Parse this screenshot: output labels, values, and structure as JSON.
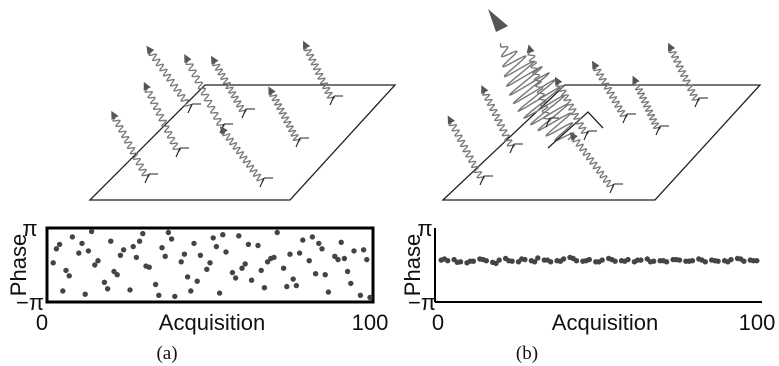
{
  "panels": [
    {
      "caption": "(a)",
      "illustration": {
        "description_icon": "random-phase-photons",
        "wave_color": "#777777",
        "arrow_color": "#555555"
      },
      "chart_data": {
        "type": "scatter",
        "xlabel": "Acquisition",
        "ylabel": "Phase",
        "xlim": [
          0,
          100
        ],
        "ylim": [
          -3.14159,
          3.14159
        ],
        "x_ticks": [
          "0",
          "100"
        ],
        "y_ticks": [
          "π",
          "−π"
        ],
        "marker_color": "#444444",
        "x": [
          1,
          3,
          5,
          7,
          9,
          11,
          13,
          15,
          17,
          19,
          21,
          23,
          25,
          27,
          29,
          31,
          33,
          35,
          37,
          39,
          41,
          43,
          45,
          47,
          49,
          51,
          53,
          55,
          57,
          59,
          61,
          63,
          65,
          67,
          69,
          71,
          73,
          75,
          77,
          79,
          81,
          83,
          85,
          87,
          89,
          91,
          93,
          95,
          97,
          99,
          2,
          6,
          10,
          14,
          18,
          22,
          26,
          30,
          34,
          38,
          42,
          46,
          50,
          54,
          58,
          62,
          66,
          70,
          74,
          78,
          82,
          86,
          90,
          94,
          98,
          4,
          12,
          20,
          28,
          36,
          44,
          52,
          60,
          68,
          76,
          84,
          92,
          100
        ],
        "y": [
          0.2,
          1.9,
          -0.5,
          2.6,
          1.1,
          -2.7,
          3.1,
          0.4,
          -1.6,
          2.2,
          -0.9,
          1.4,
          -2.3,
          0.7,
          2.9,
          -0.2,
          -1.8,
          1.6,
          3.0,
          -2.9,
          0.3,
          -1.1,
          2.0,
          0.9,
          -0.4,
          2.5,
          -2.6,
          1.2,
          -0.7,
          2.7,
          0.1,
          -1.4,
          1.8,
          -2.1,
          0.6,
          3.0,
          -0.3,
          1.0,
          -1.9,
          2.3,
          0.4,
          -0.8,
          1.5,
          -2.5,
          0.8,
          2.1,
          -0.6,
          1.3,
          -2.8,
          0.5,
          1.5,
          -1.0,
          2.0,
          0.0,
          -2.2,
          0.9,
          1.7,
          -0.1,
          -2.8,
          2.4,
          1.0,
          -1.5,
          0.2,
          2.8,
          -1.2,
          1.9,
          -0.5,
          0.7,
          -2.0,
          1.1,
          2.6,
          -0.9,
          0.5,
          -1.7,
          1.4,
          -2.4,
          1.3,
          -0.6,
          2.2,
          0.8,
          -2.4,
          1.7,
          -0.3,
          0.3,
          -1.3,
          2.0,
          0.6,
          -3.0
        ]
      }
    },
    {
      "caption": "(b)",
      "illustration": {
        "description_icon": "coherent-phase-photons",
        "wave_color": "#777777",
        "arrow_color": "#555555"
      },
      "chart_data": {
        "type": "scatter",
        "xlabel": "Acquisition",
        "ylabel": "Phase",
        "xlim": [
          0,
          100
        ],
        "ylim": [
          -3.14159,
          3.14159
        ],
        "x_ticks": [
          "0",
          "100"
        ],
        "y_ticks": [
          "π",
          "−π"
        ],
        "marker_color": "#444444",
        "x": [
          1,
          3,
          5,
          7,
          9,
          11,
          13,
          15,
          17,
          19,
          21,
          23,
          25,
          27,
          29,
          31,
          33,
          35,
          37,
          39,
          41,
          43,
          45,
          47,
          49,
          51,
          53,
          55,
          57,
          59,
          61,
          63,
          65,
          67,
          69,
          71,
          73,
          75,
          77,
          79,
          81,
          83,
          85,
          87,
          89,
          91,
          93,
          95,
          97,
          99,
          2,
          6,
          10,
          14,
          18,
          22,
          26,
          30,
          34,
          38,
          42,
          46,
          50,
          54,
          58,
          62,
          66,
          70,
          74,
          78,
          82,
          86,
          90,
          94,
          98
        ],
        "y": [
          0.45,
          0.4,
          0.5,
          0.3,
          0.2,
          0.35,
          0.55,
          0.4,
          0.25,
          0.45,
          0.6,
          0.35,
          0.3,
          0.5,
          0.4,
          0.65,
          0.45,
          0.3,
          0.4,
          0.55,
          0.7,
          0.4,
          0.35,
          0.5,
          0.3,
          0.45,
          0.6,
          0.35,
          0.4,
          0.5,
          0.3,
          0.45,
          0.55,
          0.35,
          0.4,
          0.3,
          0.5,
          0.45,
          0.35,
          0.4,
          0.55,
          0.3,
          0.45,
          0.35,
          0.4,
          0.5,
          0.6,
          0.35,
          0.45,
          0.4,
          0.55,
          0.25,
          0.35,
          0.5,
          0.15,
          0.4,
          0.55,
          0.3,
          0.45,
          0.35,
          0.6,
          0.4,
          0.3,
          0.5,
          0.35,
          0.45,
          0.3,
          0.4,
          0.5,
          0.35,
          0.45,
          0.4,
          0.3,
          0.55,
          0.4
        ]
      }
    }
  ]
}
